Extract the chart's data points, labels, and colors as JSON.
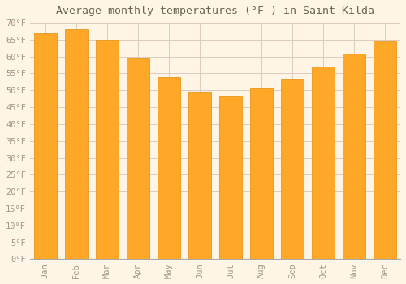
{
  "title": "Average monthly temperatures (°F ) in Saint Kilda",
  "months": [
    "Jan",
    "Feb",
    "Mar",
    "Apr",
    "May",
    "Jun",
    "Jul",
    "Aug",
    "Sep",
    "Oct",
    "Nov",
    "Dec"
  ],
  "values": [
    67,
    68,
    65,
    59.5,
    54,
    49.5,
    48.5,
    50.5,
    53.5,
    57,
    61,
    64.5
  ],
  "bar_color": "#FFA726",
  "bar_edge_color": "#E8971E",
  "ylim": [
    0,
    70
  ],
  "background_color": "#FFF5E6",
  "plot_bg_color": "#FFF5E6",
  "grid_color": "#DDCCBB",
  "title_fontsize": 9.5,
  "tick_fontsize": 7.5,
  "title_color": "#666655",
  "tick_color": "#999988"
}
